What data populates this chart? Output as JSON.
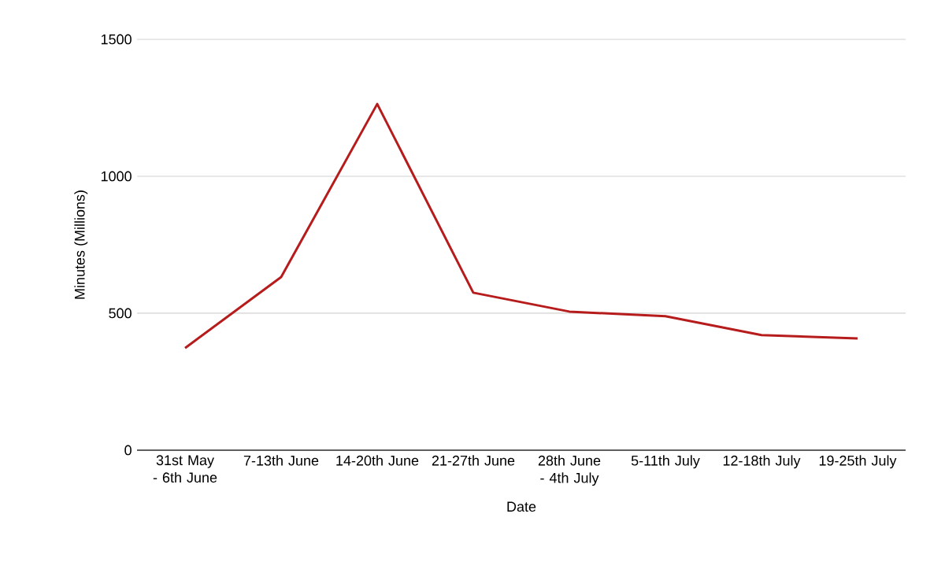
{
  "chart_data": {
    "type": "line",
    "xlabel": "Date",
    "ylabel": "Minutes (Millions)",
    "categories": [
      "31st May - 6th June",
      "7-13th June",
      "14-20th June",
      "21-27th June",
      "28th June - 4th July",
      "5-11th July",
      "12-18th July",
      "19-25th July"
    ],
    "series": [
      {
        "color": "#b71c1c",
        "values": [
          373,
          632,
          1264,
          575,
          506,
          489,
          420,
          408
        ]
      }
    ],
    "ylim": [
      0,
      1500
    ],
    "yticks": [
      0,
      500,
      1000,
      1500
    ],
    "grid": "y",
    "legend": false,
    "marker": "none",
    "line_style": "solid"
  }
}
